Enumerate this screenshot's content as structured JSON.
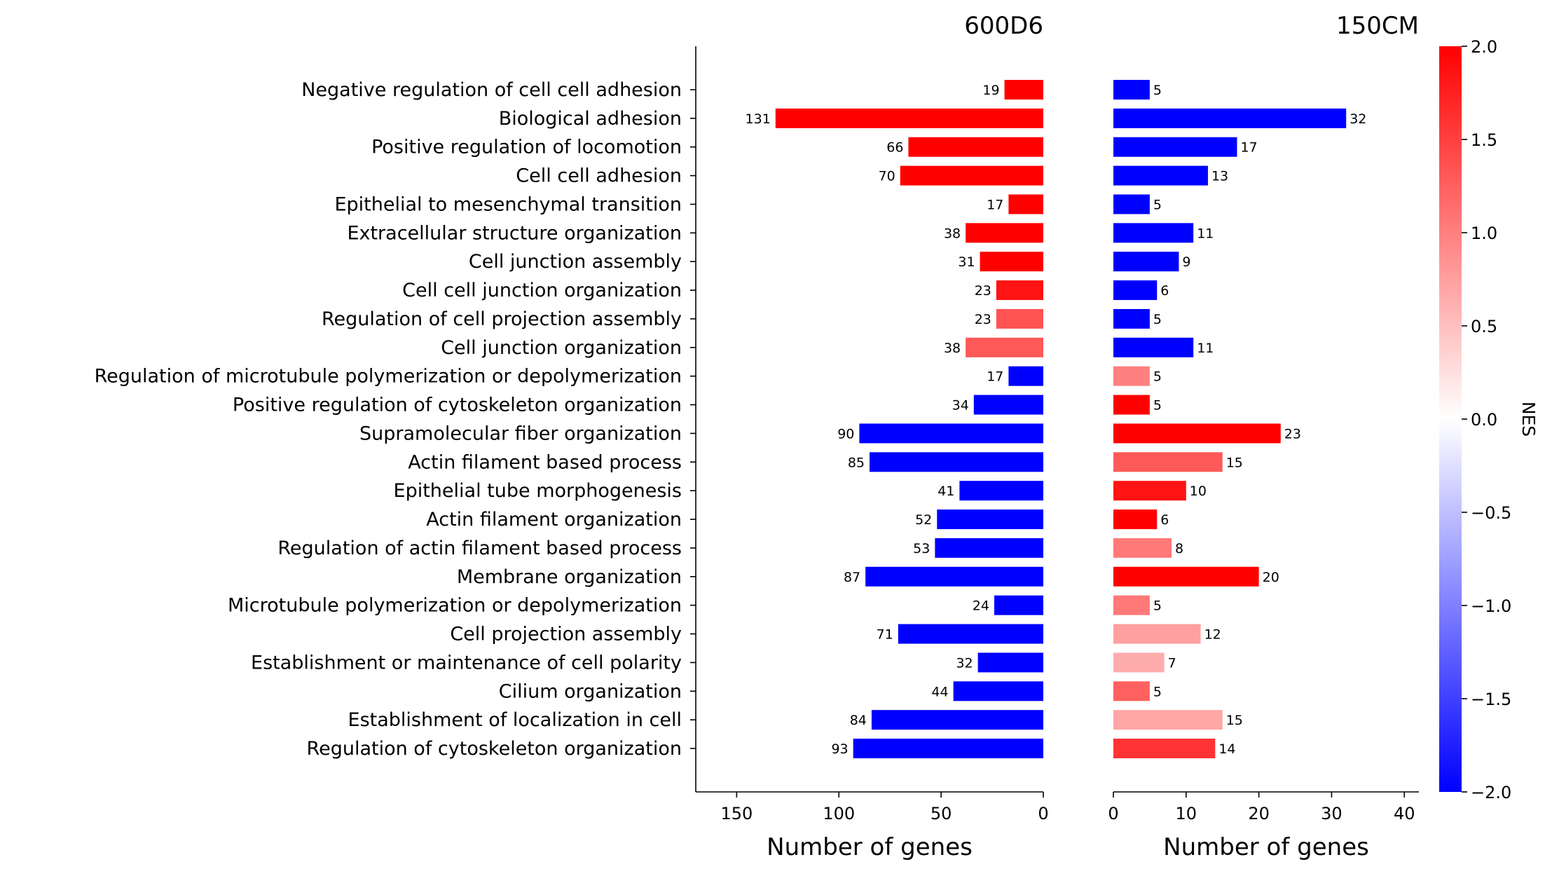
{
  "chart_data": {
    "type": "bar",
    "orientation": "horizontal",
    "categories": [
      "Negative regulation of cell cell adhesion",
      "Biological adhesion",
      "Positive regulation of locomotion",
      "Cell cell adhesion",
      "Epithelial to mesenchymal transition",
      "Extracellular structure organization",
      "Cell junction assembly",
      "Cell cell junction organization",
      "Regulation of cell projection assembly",
      "Cell junction organization",
      "Regulation of microtubule polymerization or depolymerization",
      "Positive regulation of cytoskeleton organization",
      "Supramolecular fiber organization",
      "Actin filament based process",
      "Epithelial tube morphogenesis",
      "Actin filament organization",
      "Regulation of actin filament based process",
      "Membrane organization",
      "Microtubule polymerization or depolymerization",
      "Cell projection assembly",
      "Establishment or maintenance of cell polarity",
      "Cilium organization",
      "Establishment of localization in cell",
      "Regulation of cytoskeleton organization"
    ],
    "panels": [
      {
        "title": "600D6",
        "xlabel": "Number of genes",
        "xlim": [
          170,
          0
        ],
        "xticks": [
          150,
          100,
          50,
          0
        ],
        "values": [
          19,
          131,
          66,
          70,
          17,
          38,
          31,
          23,
          23,
          38,
          17,
          34,
          90,
          85,
          41,
          52,
          53,
          87,
          24,
          71,
          32,
          44,
          84,
          93
        ],
        "nes": [
          2.0,
          2.0,
          2.0,
          2.0,
          2.0,
          2.0,
          2.0,
          1.85,
          1.35,
          1.3,
          -2.0,
          -2.0,
          -2.0,
          -2.0,
          -2.0,
          -2.0,
          -2.0,
          -2.0,
          -2.0,
          -2.0,
          -2.0,
          -2.0,
          -2.0,
          -2.0
        ]
      },
      {
        "title": "150CM",
        "xlabel": "Number of genes",
        "xlim": [
          0,
          42
        ],
        "xticks": [
          0,
          10,
          20,
          30,
          40
        ],
        "values": [
          5,
          32,
          17,
          13,
          5,
          11,
          9,
          6,
          5,
          11,
          5,
          5,
          23,
          15,
          10,
          6,
          8,
          20,
          5,
          12,
          7,
          5,
          15,
          14
        ],
        "nes": [
          -2.0,
          -2.0,
          -2.0,
          -2.0,
          -2.0,
          -2.0,
          -2.0,
          -2.0,
          -2.0,
          -2.0,
          1.0,
          2.0,
          2.0,
          1.3,
          1.85,
          2.0,
          1.05,
          2.0,
          1.05,
          0.75,
          0.65,
          1.25,
          0.7,
          1.6
        ]
      }
    ],
    "colorbar": {
      "label": "NES",
      "range": [
        -2.0,
        2.0
      ],
      "ticks": [
        "2.0",
        "1.5",
        "1.0",
        "0.5",
        "0.0",
        "−0.5",
        "−1.0",
        "−1.5",
        "−2.0"
      ],
      "tick_values": [
        2.0,
        1.5,
        1.0,
        0.5,
        0.0,
        -0.5,
        -1.0,
        -1.5,
        -2.0
      ],
      "colormap": "bwr",
      "colors": {
        "low": "#0000ff",
        "mid": "#ffffff",
        "high": "#ff0000"
      }
    }
  }
}
